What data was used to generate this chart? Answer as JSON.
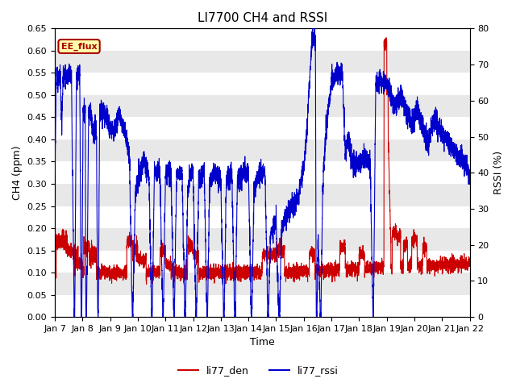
{
  "title": "LI7700 CH4 and RSSI",
  "xlabel": "Time",
  "ylabel_left": "CH4 (ppm)",
  "ylabel_right": "RSSI (%)",
  "ylim_left": [
    0.0,
    0.65
  ],
  "ylim_right": [
    0,
    80
  ],
  "yticks_left": [
    0.0,
    0.05,
    0.1,
    0.15,
    0.2,
    0.25,
    0.3,
    0.35,
    0.4,
    0.45,
    0.5,
    0.55,
    0.6,
    0.65
  ],
  "yticks_right": [
    0,
    10,
    20,
    30,
    40,
    50,
    60,
    70,
    80
  ],
  "xtick_labels": [
    "Jan 7",
    "Jan 8",
    "Jan 9",
    "Jan 10",
    "Jan 11",
    "Jan 12",
    "Jan 13",
    "Jan 14",
    "Jan 15",
    "Jan 16",
    "Jan 17",
    "Jan 18",
    "Jan 19",
    "Jan 20",
    "Jan 21",
    "Jan 22"
  ],
  "annotation_text": "EE_flux",
  "annotation_color": "#aa0000",
  "annotation_bg": "#ffffaa",
  "line_ch4_color": "#cc0000",
  "line_rssi_color": "#0000cc",
  "legend_labels": [
    "li77_den",
    "li77_rssi"
  ],
  "bg_color": "#e8e8e8",
  "grid_color": "#ffffff",
  "title_fontsize": 11,
  "label_fontsize": 9,
  "tick_fontsize": 8
}
